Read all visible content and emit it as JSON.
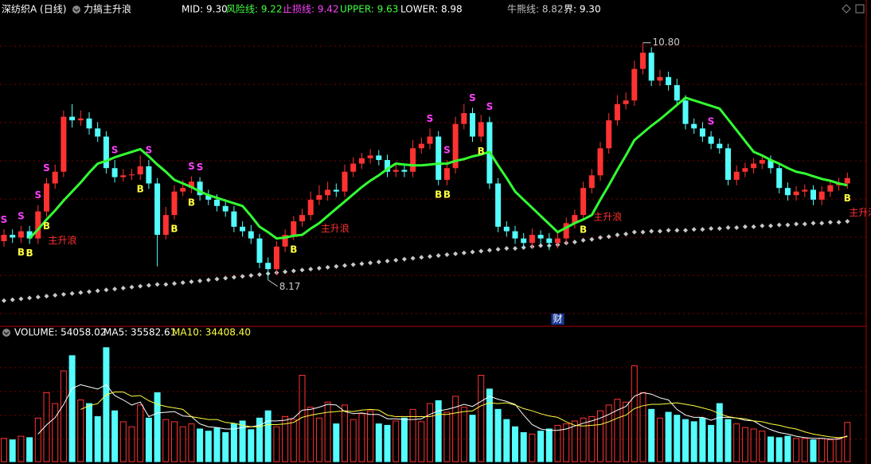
{
  "chart_data": {
    "type": "candlestick",
    "title": "深纺织A (日线)",
    "indicator": "力搞主升浪",
    "indicator_values": [
      {
        "text": "MID: 9.30",
        "color": "#ffffff"
      },
      {
        "text": "风险线: 9.22",
        "color": "#40ff40"
      },
      {
        "text": "止损线: 9.42",
        "color": "#ff40ff"
      },
      {
        "text": "UPPER: 9.63",
        "color": "#40ff40"
      },
      {
        "text": "LOWER: 8.98",
        "color": "#ffffff"
      },
      {
        "text": "牛熊线: 8.82",
        "color": "#c0c0c0"
      },
      {
        "text": "界: 9.30",
        "color": "#ffffff"
      }
    ],
    "up_color": "#ff3232",
    "down_color": "#54fcfc",
    "ylim": [
      7.7,
      11.08
    ],
    "open": [
      8.6,
      8.67,
      8.64,
      8.71,
      8.63,
      8.93,
      9.24,
      9.37,
      9.98,
      9.94,
      9.96,
      9.85,
      9.76,
      9.41,
      9.31,
      9.33,
      9.34,
      9.43,
      9.24,
      8.67,
      8.89,
      9.15,
      9.19,
      9.26,
      9.11,
      9.06,
      8.99,
      8.93,
      8.76,
      8.71,
      8.63,
      8.36,
      8.29,
      8.54,
      8.67,
      8.82,
      8.89,
      9.06,
      9.11,
      9.17,
      9.15,
      9.37,
      9.46,
      9.52,
      9.55,
      9.5,
      9.37,
      9.39,
      9.37,
      9.63,
      9.68,
      9.76,
      9.28,
      9.41,
      9.9,
      10.02,
      9.76,
      9.92,
      9.24,
      8.76,
      8.71,
      8.63,
      8.58,
      8.67,
      8.63,
      8.58,
      8.63,
      8.8,
      8.89,
      9.19,
      9.33,
      9.63,
      9.94,
      10.12,
      10.16,
      10.51,
      10.69,
      10.38,
      10.42,
      10.33,
      10.16,
      9.9,
      9.85,
      9.76,
      9.68,
      9.63,
      9.28,
      9.37,
      9.41,
      9.46,
      9.5,
      9.41,
      9.19,
      9.11,
      9.15,
      9.17,
      9.06,
      9.15,
      9.22,
      9.24
    ],
    "high": [
      8.73,
      8.73,
      8.77,
      8.77,
      9.0,
      9.3,
      9.45,
      10.05,
      10.12,
      10.05,
      10.03,
      9.92,
      9.82,
      9.5,
      9.4,
      9.4,
      9.55,
      9.5,
      9.3,
      8.98,
      9.22,
      9.28,
      9.32,
      9.31,
      9.17,
      9.12,
      9.05,
      8.99,
      8.82,
      8.78,
      8.68,
      8.42,
      8.6,
      8.73,
      8.88,
      8.96,
      9.15,
      9.22,
      9.26,
      9.24,
      9.45,
      9.53,
      9.58,
      9.62,
      9.61,
      9.56,
      9.46,
      9.45,
      9.72,
      9.75,
      9.85,
      9.82,
      9.5,
      9.98,
      10.12,
      10.08,
      10.0,
      9.98,
      9.3,
      8.82,
      8.77,
      8.69,
      8.74,
      8.72,
      8.69,
      8.7,
      8.86,
      8.95,
      9.26,
      9.4,
      9.7,
      10.02,
      10.22,
      10.25,
      10.6,
      10.8,
      10.75,
      10.5,
      10.48,
      10.4,
      10.22,
      9.96,
      9.92,
      9.82,
      9.74,
      9.68,
      9.44,
      9.47,
      9.52,
      9.56,
      9.55,
      9.46,
      9.25,
      9.21,
      9.23,
      9.22,
      9.21,
      9.28,
      9.3,
      9.36
    ],
    "low": [
      8.54,
      8.58,
      8.58,
      8.57,
      8.57,
      8.87,
      9.18,
      9.31,
      9.86,
      9.88,
      9.78,
      9.7,
      9.35,
      9.25,
      9.26,
      9.28,
      9.28,
      9.18,
      8.32,
      8.62,
      8.84,
      9.1,
      9.13,
      9.05,
      9.0,
      8.93,
      8.87,
      8.7,
      8.65,
      8.57,
      8.3,
      8.17,
      8.23,
      8.48,
      8.61,
      8.76,
      8.83,
      9.0,
      9.05,
      9.09,
      9.09,
      9.31,
      9.4,
      9.46,
      9.44,
      9.31,
      9.31,
      9.31,
      9.31,
      9.57,
      9.62,
      9.22,
      9.22,
      9.35,
      9.84,
      9.7,
      9.7,
      9.18,
      8.7,
      8.65,
      8.57,
      8.52,
      8.52,
      8.57,
      8.5,
      8.52,
      8.57,
      8.74,
      8.83,
      9.13,
      9.27,
      9.57,
      9.88,
      10.06,
      10.1,
      10.45,
      10.32,
      10.32,
      10.27,
      10.1,
      9.84,
      9.79,
      9.7,
      9.62,
      9.57,
      9.22,
      9.22,
      9.31,
      9.35,
      9.4,
      9.35,
      9.13,
      9.05,
      9.05,
      9.09,
      9.0,
      9.0,
      9.09,
      9.16,
      9.18
    ],
    "close": [
      8.67,
      8.64,
      8.71,
      8.63,
      8.93,
      9.24,
      9.37,
      9.98,
      9.94,
      9.96,
      9.85,
      9.76,
      9.41,
      9.31,
      9.33,
      9.34,
      9.43,
      9.24,
      8.67,
      8.89,
      9.15,
      9.19,
      9.26,
      9.11,
      9.06,
      8.99,
      8.93,
      8.76,
      8.71,
      8.63,
      8.36,
      8.29,
      8.54,
      8.67,
      8.82,
      8.89,
      9.06,
      9.11,
      9.17,
      9.15,
      9.37,
      9.46,
      9.52,
      9.55,
      9.5,
      9.37,
      9.39,
      9.37,
      9.63,
      9.68,
      9.76,
      9.28,
      9.41,
      9.9,
      10.02,
      9.76,
      9.92,
      9.24,
      8.76,
      8.71,
      8.63,
      8.58,
      8.67,
      8.63,
      8.58,
      8.63,
      8.8,
      8.89,
      9.19,
      9.33,
      9.63,
      9.94,
      10.12,
      10.16,
      10.51,
      10.69,
      10.38,
      10.42,
      10.33,
      10.16,
      9.9,
      9.85,
      9.76,
      9.68,
      9.63,
      9.28,
      9.37,
      9.41,
      9.46,
      9.5,
      9.41,
      9.19,
      9.11,
      9.15,
      9.17,
      9.06,
      9.15,
      9.22,
      9.24,
      9.3
    ],
    "high_label": "10.80",
    "low_label": "8.17",
    "mid_line": {
      "color": "#33ff33",
      "values": [
        null,
        null,
        null,
        8.63,
        8.73,
        8.84,
        8.94,
        9.05,
        9.15,
        9.25,
        9.36,
        9.46,
        9.49,
        9.53,
        9.56,
        9.59,
        9.62,
        9.54,
        9.45,
        9.37,
        9.28,
        9.24,
        9.2,
        9.15,
        9.11,
        9.08,
        9.05,
        9.02,
        8.99,
        8.88,
        8.76,
        8.7,
        8.63,
        8.64,
        8.66,
        8.67,
        8.74,
        8.8,
        8.88,
        8.96,
        9.04,
        9.12,
        9.2,
        9.27,
        9.33,
        9.4,
        9.46,
        9.45,
        9.44,
        9.44,
        9.45,
        9.46,
        9.46,
        9.49,
        9.51,
        9.54,
        9.56,
        9.59,
        9.44,
        9.3,
        9.15,
        9.06,
        8.97,
        8.88,
        8.79,
        8.7,
        8.75,
        8.8,
        8.84,
        8.89,
        9.06,
        9.22,
        9.39,
        9.55,
        9.72,
        9.8,
        9.88,
        9.95,
        10.03,
        10.11,
        10.19,
        10.16,
        10.13,
        10.1,
        10.07,
        9.95,
        9.83,
        9.71,
        9.59,
        9.55,
        9.5,
        9.46,
        9.41,
        9.37,
        9.35,
        9.32,
        9.29,
        9.27,
        9.24,
        9.22
      ]
    },
    "bull_bear_line": {
      "color": "#c8c8c8",
      "values": [
        7.94,
        7.95,
        7.96,
        7.97,
        7.98,
        7.99,
        8.0,
        8.01,
        8.02,
        8.03,
        8.04,
        8.05,
        8.06,
        8.07,
        8.08,
        8.09,
        8.1,
        8.11,
        8.12,
        8.12,
        8.13,
        8.14,
        8.15,
        8.16,
        8.17,
        8.18,
        8.19,
        8.2,
        8.21,
        8.22,
        8.23,
        8.24,
        8.25,
        8.26,
        8.27,
        8.28,
        8.29,
        8.3,
        8.31,
        8.32,
        8.33,
        8.34,
        8.35,
        8.36,
        8.37,
        8.38,
        8.39,
        8.4,
        8.41,
        8.42,
        8.43,
        8.44,
        8.45,
        8.46,
        8.47,
        8.48,
        8.49,
        8.5,
        8.51,
        8.52,
        8.52,
        8.53,
        8.54,
        8.55,
        8.55,
        8.56,
        8.58,
        8.59,
        8.61,
        8.62,
        8.64,
        8.65,
        8.67,
        8.68,
        8.7,
        8.7,
        8.71,
        8.71,
        8.72,
        8.72,
        8.72,
        8.73,
        8.73,
        8.74,
        8.74,
        8.75,
        8.75,
        8.76,
        8.76,
        8.77,
        8.77,
        8.78,
        8.78,
        8.79,
        8.79,
        8.8,
        8.8,
        8.81,
        8.81,
        8.82
      ]
    },
    "sell_signals": [
      "S",
      null,
      "S",
      null,
      "S",
      "S",
      null,
      null,
      null,
      null,
      null,
      null,
      null,
      "S",
      null,
      null,
      null,
      "S",
      null,
      null,
      null,
      null,
      "S",
      "S",
      null,
      null,
      null,
      null,
      null,
      null,
      null,
      null,
      null,
      null,
      null,
      null,
      null,
      null,
      null,
      null,
      null,
      null,
      null,
      null,
      null,
      null,
      null,
      null,
      null,
      null,
      "S",
      null,
      "S",
      null,
      null,
      "S",
      null,
      "S",
      null,
      null,
      null,
      null,
      null,
      null,
      null,
      null,
      null,
      null,
      null,
      null,
      null,
      null,
      null,
      null,
      null,
      null,
      null,
      null,
      null,
      null,
      null,
      null,
      null,
      "S",
      null,
      null,
      null,
      null,
      null,
      null,
      null,
      null,
      null,
      null,
      null,
      null,
      null,
      null,
      null,
      null
    ],
    "buy_signals": [
      null,
      null,
      "B",
      "B",
      null,
      "B",
      null,
      null,
      null,
      null,
      null,
      null,
      null,
      null,
      null,
      null,
      "B",
      null,
      null,
      null,
      "B",
      null,
      "B",
      null,
      null,
      null,
      null,
      null,
      null,
      null,
      null,
      null,
      null,
      null,
      "B",
      null,
      null,
      null,
      null,
      null,
      null,
      null,
      null,
      null,
      null,
      null,
      null,
      null,
      null,
      null,
      null,
      "B",
      "B",
      null,
      null,
      null,
      "B",
      null,
      null,
      null,
      null,
      null,
      null,
      null,
      null,
      null,
      null,
      null,
      "B",
      null,
      null,
      null,
      null,
      null,
      null,
      null,
      null,
      null,
      null,
      null,
      null,
      null,
      null,
      null,
      null,
      null,
      null,
      null,
      null,
      null,
      null,
      null,
      null,
      null,
      null,
      null,
      null,
      null,
      null,
      "B"
    ],
    "wave_labels": [
      null,
      null,
      null,
      null,
      null,
      "主升浪",
      null,
      null,
      null,
      null,
      null,
      null,
      null,
      null,
      null,
      null,
      null,
      null,
      null,
      null,
      null,
      null,
      null,
      null,
      null,
      null,
      null,
      null,
      null,
      null,
      null,
      null,
      null,
      null,
      null,
      null,
      null,
      "主升浪",
      null,
      null,
      null,
      null,
      null,
      null,
      null,
      null,
      null,
      null,
      null,
      null,
      null,
      null,
      null,
      null,
      null,
      null,
      null,
      null,
      null,
      null,
      null,
      null,
      null,
      null,
      null,
      null,
      null,
      null,
      null,
      "主升浪",
      null,
      null,
      null,
      null,
      null,
      null,
      null,
      null,
      null,
      null,
      null,
      null,
      null,
      null,
      null,
      null,
      null,
      null,
      null,
      null,
      null,
      null,
      null,
      null,
      null,
      null,
      null,
      null,
      null,
      "主升浪"
    ],
    "event_labels": [
      null,
      null,
      null,
      null,
      null,
      null,
      null,
      null,
      null,
      null,
      null,
      null,
      null,
      null,
      null,
      null,
      null,
      null,
      null,
      null,
      null,
      null,
      null,
      null,
      null,
      null,
      null,
      null,
      null,
      null,
      null,
      null,
      null,
      null,
      null,
      null,
      null,
      null,
      null,
      null,
      null,
      null,
      null,
      null,
      null,
      null,
      null,
      null,
      null,
      null,
      null,
      null,
      null,
      null,
      null,
      null,
      null,
      null,
      null,
      null,
      null,
      null,
      null,
      null,
      null,
      "财",
      null,
      null,
      null,
      null,
      null,
      null,
      null,
      null,
      null,
      null,
      null,
      null,
      null,
      null,
      null,
      null,
      null,
      null,
      null,
      null,
      null,
      null,
      null,
      null,
      null,
      null,
      null,
      null,
      null,
      null,
      null,
      null,
      null,
      null
    ],
    "volume": {
      "header": [
        {
          "text": "VOLUME: 54058.02",
          "color": "#ffffff"
        },
        {
          "text": "MA5: 35582.61",
          "color": "#ffffff"
        },
        {
          "text": "MA10: 34408.40",
          "color": "#ffff40"
        }
      ],
      "ylim": [
        0,
        170000
      ],
      "values": [
        32000,
        30000,
        35000,
        33000,
        60000,
        95000,
        80000,
        125000,
        146000,
        85000,
        80000,
        62000,
        157000,
        70000,
        55000,
        48000,
        78000,
        60000,
        95000,
        58000,
        55000,
        48000,
        52000,
        45000,
        42000,
        46000,
        40000,
        52000,
        56000,
        44000,
        60000,
        70000,
        48000,
        62000,
        58000,
        119000,
        75000,
        60000,
        82000,
        52000,
        78000,
        58000,
        66000,
        70000,
        52000,
        50000,
        56000,
        60000,
        72000,
        55000,
        80000,
        84000,
        68000,
        90000,
        75000,
        64000,
        119000,
        100000,
        72000,
        58000,
        48000,
        40000,
        38000,
        42000,
        45000,
        50000,
        52000,
        56000,
        60000,
        62000,
        70000,
        78000,
        86000,
        82000,
        132000,
        95000,
        72000,
        60000,
        68000,
        64000,
        58000,
        55000,
        60000,
        50000,
        80000,
        58000,
        52000,
        47000,
        45000,
        42000,
        34000,
        33000,
        35000,
        32000,
        32000,
        30000,
        32000,
        30000,
        32000,
        54058.02
      ],
      "ma5": {
        "color": "#ffffff",
        "values": [
          null,
          null,
          null,
          null,
          38000,
          50600,
          60600,
          78600,
          101000,
          106000,
          103000,
          100000,
          106000,
          91000,
          85000,
          78000,
          82000,
          62000,
          67000,
          68000,
          69000,
          63000,
          62000,
          52000,
          48000,
          47000,
          45000,
          45000,
          47000,
          48000,
          50000,
          56000,
          56000,
          57000,
          60000,
          71000,
          72000,
          75000,
          79000,
          78000,
          69000,
          66000,
          67000,
          65000,
          65000,
          59000,
          59000,
          58000,
          58000,
          59000,
          65000,
          70000,
          72000,
          75000,
          79000,
          76000,
          83000,
          90000,
          86000,
          83000,
          79000,
          64000,
          51000,
          45000,
          43000,
          43000,
          45000,
          49000,
          53000,
          56000,
          60000,
          65000,
          71000,
          76000,
          90000,
          95000,
          93000,
          88000,
          85000,
          72000,
          64000,
          61000,
          61000,
          57000,
          61000,
          61000,
          60000,
          57000,
          56000,
          49000,
          44000,
          40000,
          38000,
          35000,
          33000,
          32000,
          32000,
          31000,
          31000,
          35582.61
        ]
      },
      "ma10": {
        "color": "#ffff40",
        "values": [
          null,
          null,
          null,
          null,
          null,
          null,
          null,
          null,
          null,
          72000,
          77000,
          80000,
          92000,
          96000,
          96000,
          90000,
          91000,
          84000,
          79000,
          76000,
          74000,
          72000,
          62000,
          60000,
          58000,
          58000,
          54000,
          53000,
          50000,
          48000,
          48000,
          51000,
          51000,
          52000,
          54000,
          61000,
          64000,
          66000,
          68000,
          69000,
          70000,
          69000,
          71000,
          72000,
          71000,
          64000,
          62000,
          62000,
          62000,
          62000,
          62000,
          65000,
          65000,
          67000,
          69000,
          70000,
          77000,
          81000,
          80000,
          81000,
          78000,
          73000,
          70000,
          66000,
          63000,
          61000,
          55000,
          50000,
          49000,
          50000,
          51000,
          55000,
          60000,
          64000,
          73000,
          77000,
          79000,
          79000,
          80000,
          81000,
          79000,
          77000,
          74000,
          71000,
          66000,
          62000,
          60000,
          59000,
          56000,
          55000,
          52000,
          50000,
          47000,
          45000,
          41000,
          38000,
          36000,
          34000,
          33000,
          34408.4
        ]
      }
    }
  }
}
